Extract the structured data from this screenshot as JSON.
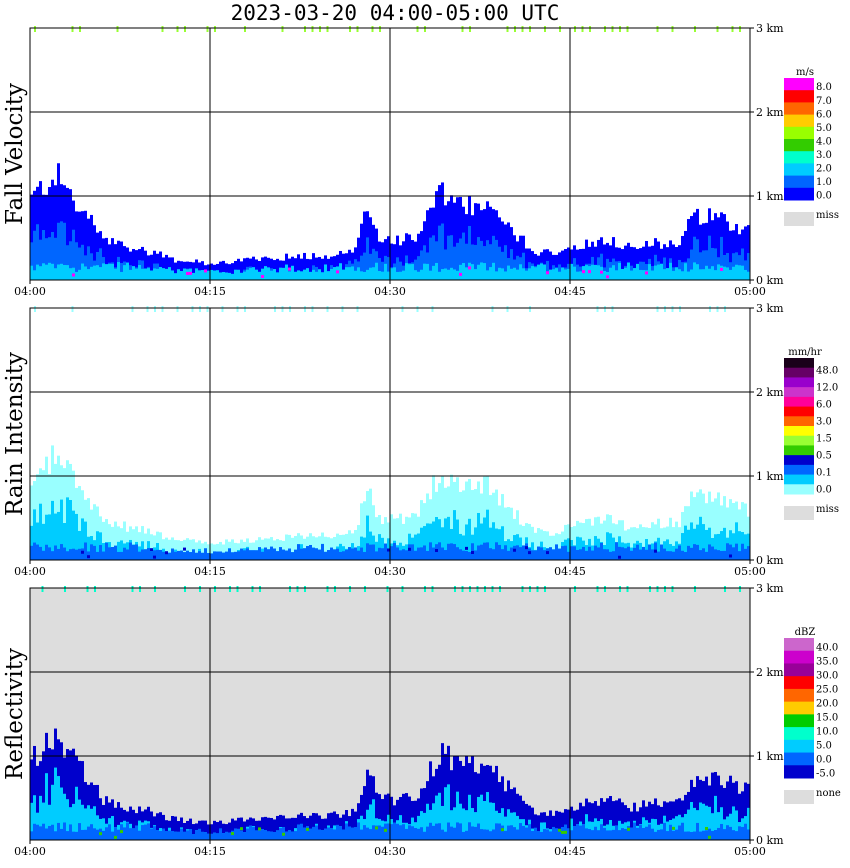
{
  "title": "2023-03-20   04:00-05:00 UTC",
  "colors": {
    "missing": "#dddddd",
    "grid": "#000000"
  },
  "chart_data": [
    {
      "type": "heatmap",
      "title": "Fall Velocity",
      "x": {
        "ticks": [
          "04:00",
          "04:15",
          "04:30",
          "04:45",
          "05:00"
        ],
        "range_min": [
          0,
          60
        ]
      },
      "y": {
        "ticks": [
          "0 km",
          "1 km",
          "2 km",
          "3 km"
        ],
        "range_km": [
          0,
          3
        ]
      },
      "background": "#ffffff",
      "legend": {
        "unit": "m/s",
        "labels": [
          "8.0",
          "7.0",
          "6.0",
          "5.0",
          "4.0",
          "3.0",
          "2.0",
          "1.0",
          "0.0"
        ],
        "colors": [
          "#ff00ff",
          "#ff0000",
          "#ff6600",
          "#ffcc00",
          "#99ff00",
          "#33cc00",
          "#00ffcc",
          "#00ccff",
          "#0066ff",
          "#0000ff"
        ],
        "missing_label": "miss"
      },
      "precip_profile": {
        "time_min": [
          0,
          2,
          3,
          5,
          6,
          8,
          10,
          12,
          15,
          18,
          20,
          22,
          25,
          27,
          28,
          29,
          30,
          32,
          34,
          35,
          36,
          38,
          40,
          42,
          44,
          46,
          48,
          50,
          52,
          54,
          55,
          56,
          57,
          58,
          60
        ],
        "echo_top_km": [
          1.0,
          1.3,
          1.1,
          0.7,
          0.5,
          0.4,
          0.35,
          0.25,
          0.2,
          0.25,
          0.25,
          0.3,
          0.3,
          0.35,
          0.9,
          0.5,
          0.5,
          0.5,
          1.05,
          1.0,
          0.9,
          0.9,
          0.6,
          0.35,
          0.35,
          0.45,
          0.5,
          0.4,
          0.45,
          0.45,
          0.75,
          0.8,
          0.75,
          0.7,
          0.6
        ]
      }
    },
    {
      "type": "heatmap",
      "title": "Rain Intensity",
      "x": {
        "ticks": [
          "04:00",
          "04:15",
          "04:30",
          "04:45",
          "05:00"
        ],
        "range_min": [
          0,
          60
        ]
      },
      "y": {
        "ticks": [
          "0 km",
          "1 km",
          "2 km",
          "3 km"
        ],
        "range_km": [
          0,
          3
        ]
      },
      "background": "#ffffff",
      "legend": {
        "unit": "mm/hr",
        "labels": [
          "48.0",
          "12.0",
          "6.0",
          "3.0",
          "1.5",
          "0.5",
          "0.1",
          "0.0"
        ],
        "colors": [
          "#1a001a",
          "#660066",
          "#9900cc",
          "#cc33cc",
          "#ff0099",
          "#ff0000",
          "#ff6600",
          "#ffff00",
          "#99ff33",
          "#33cc00",
          "#0000cc",
          "#0066ff",
          "#00ccff",
          "#99ffff"
        ],
        "missing_label": "miss"
      },
      "precip_profile": {
        "time_min": [
          0,
          2,
          3,
          5,
          6,
          8,
          10,
          12,
          15,
          18,
          20,
          22,
          25,
          27,
          28,
          29,
          30,
          32,
          34,
          35,
          36,
          38,
          40,
          42,
          44,
          46,
          48,
          50,
          52,
          54,
          55,
          56,
          57,
          58,
          60
        ],
        "echo_top_km": [
          1.0,
          1.3,
          1.1,
          0.7,
          0.5,
          0.4,
          0.35,
          0.25,
          0.2,
          0.25,
          0.25,
          0.3,
          0.3,
          0.35,
          0.9,
          0.5,
          0.5,
          0.5,
          1.05,
          1.0,
          0.9,
          0.9,
          0.6,
          0.35,
          0.35,
          0.45,
          0.5,
          0.4,
          0.45,
          0.45,
          0.75,
          0.8,
          0.75,
          0.7,
          0.6
        ]
      }
    },
    {
      "type": "heatmap",
      "title": "Reflectivity",
      "x": {
        "ticks": [
          "04:00",
          "04:15",
          "04:30",
          "04:45",
          "05:00"
        ],
        "range_min": [
          0,
          60
        ]
      },
      "y": {
        "ticks": [
          "0 km",
          "1 km",
          "2 km",
          "3 km"
        ],
        "range_km": [
          0,
          3
        ]
      },
      "background": "#dddddd",
      "legend": {
        "unit": "dBZ",
        "labels": [
          "40.0",
          "35.0",
          "30.0",
          "25.0",
          "20.0",
          "15.0",
          "10.0",
          "5.0",
          "0.0",
          "-5.0"
        ],
        "colors": [
          "#cc66cc",
          "#cc00cc",
          "#990099",
          "#ff0000",
          "#ff6600",
          "#ffcc00",
          "#00cc00",
          "#00ffcc",
          "#00ccff",
          "#0066ff",
          "#0000cc"
        ],
        "missing_label": "none"
      },
      "precip_profile": {
        "time_min": [
          0,
          2,
          3,
          5,
          6,
          8,
          10,
          12,
          15,
          18,
          20,
          22,
          25,
          27,
          28,
          29,
          30,
          32,
          34,
          35,
          36,
          38,
          40,
          42,
          44,
          46,
          48,
          50,
          52,
          54,
          55,
          56,
          57,
          58,
          60
        ],
        "echo_top_km": [
          1.0,
          1.3,
          1.1,
          0.7,
          0.5,
          0.4,
          0.35,
          0.25,
          0.2,
          0.25,
          0.25,
          0.3,
          0.3,
          0.35,
          0.9,
          0.5,
          0.5,
          0.5,
          1.05,
          1.0,
          0.9,
          0.9,
          0.6,
          0.35,
          0.35,
          0.45,
          0.5,
          0.4,
          0.45,
          0.45,
          0.75,
          0.8,
          0.75,
          0.7,
          0.6
        ]
      }
    }
  ]
}
